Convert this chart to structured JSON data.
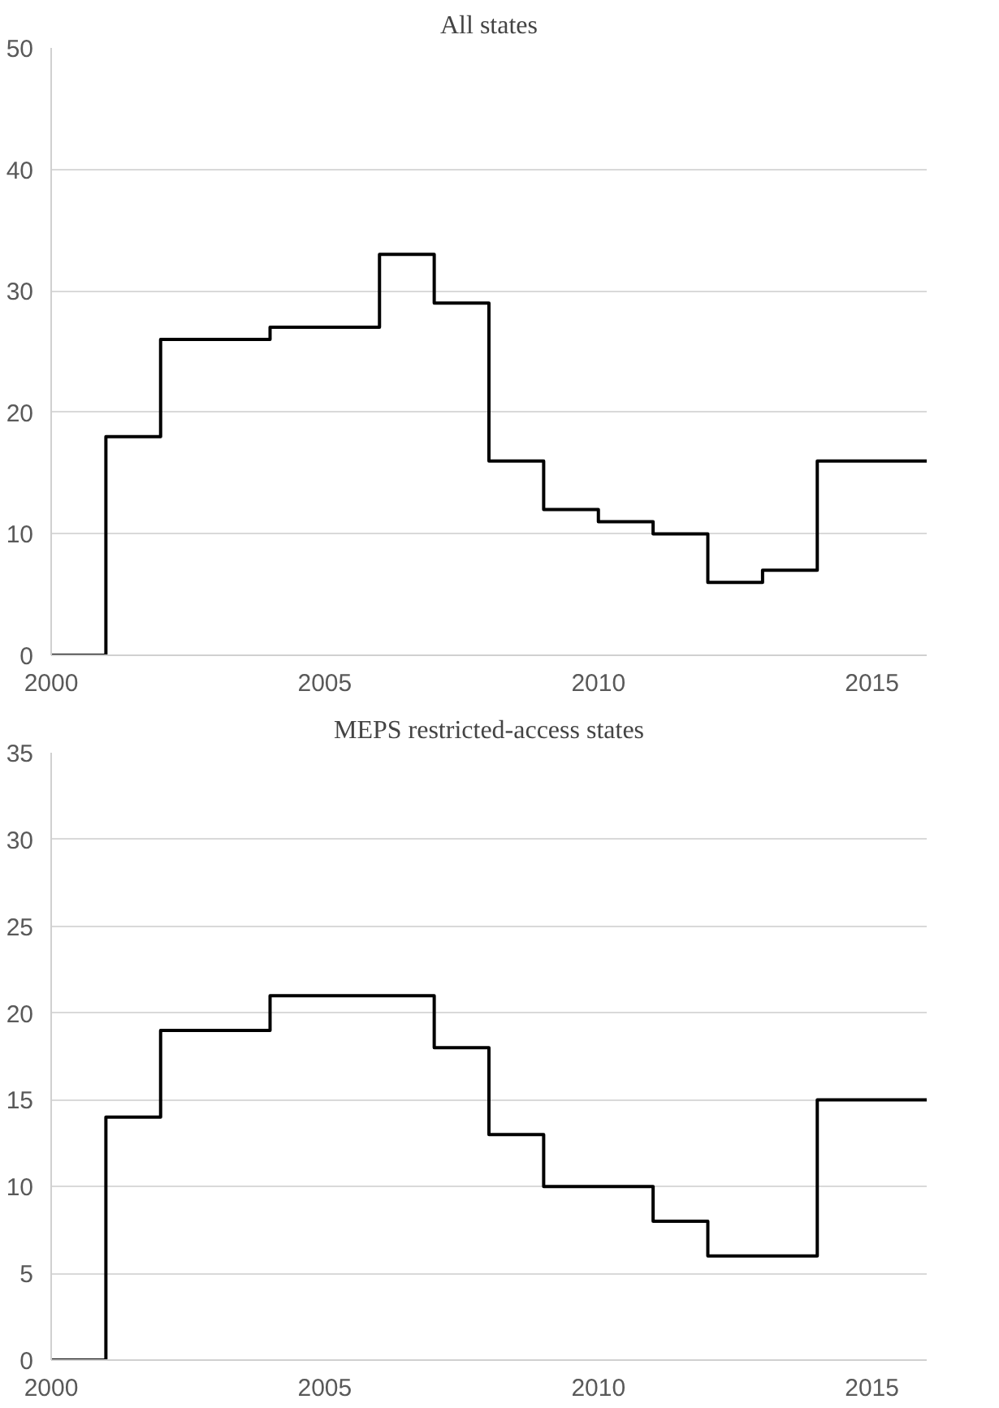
{
  "chart_data": [
    {
      "type": "step",
      "title": "All states",
      "x": [
        2000,
        2001,
        2002,
        2003,
        2004,
        2005,
        2006,
        2007,
        2008,
        2009,
        2010,
        2011,
        2012,
        2013,
        2014,
        2015,
        2016
      ],
      "series": [
        {
          "color": "#000000",
          "values": [
            0,
            18,
            26,
            26,
            27,
            27,
            33,
            29,
            16,
            12,
            11,
            10,
            6,
            7,
            16,
            16,
            16
          ]
        }
      ],
      "xlim": [
        2000,
        2016
      ],
      "xticks": [
        2000,
        2005,
        2010,
        2015
      ],
      "ylim": [
        0,
        50
      ],
      "yticks": [
        0,
        10,
        20,
        30,
        40,
        50
      ],
      "grid": "y"
    },
    {
      "type": "step",
      "title": "MEPS restricted-access states",
      "x": [
        2000,
        2001,
        2002,
        2003,
        2004,
        2005,
        2006,
        2007,
        2008,
        2009,
        2010,
        2011,
        2012,
        2013,
        2014,
        2015,
        2016
      ],
      "series": [
        {
          "color": "#000000",
          "values": [
            0,
            14,
            19,
            19,
            21,
            21,
            21,
            18,
            13,
            10,
            10,
            8,
            6,
            6,
            15,
            15,
            15
          ]
        }
      ],
      "xlim": [
        2000,
        2016
      ],
      "xticks": [
        2000,
        2005,
        2010,
        2015
      ],
      "ylim": [
        0,
        35
      ],
      "yticks": [
        0,
        5,
        10,
        15,
        20,
        25,
        30,
        35
      ],
      "grid": "y"
    }
  ]
}
